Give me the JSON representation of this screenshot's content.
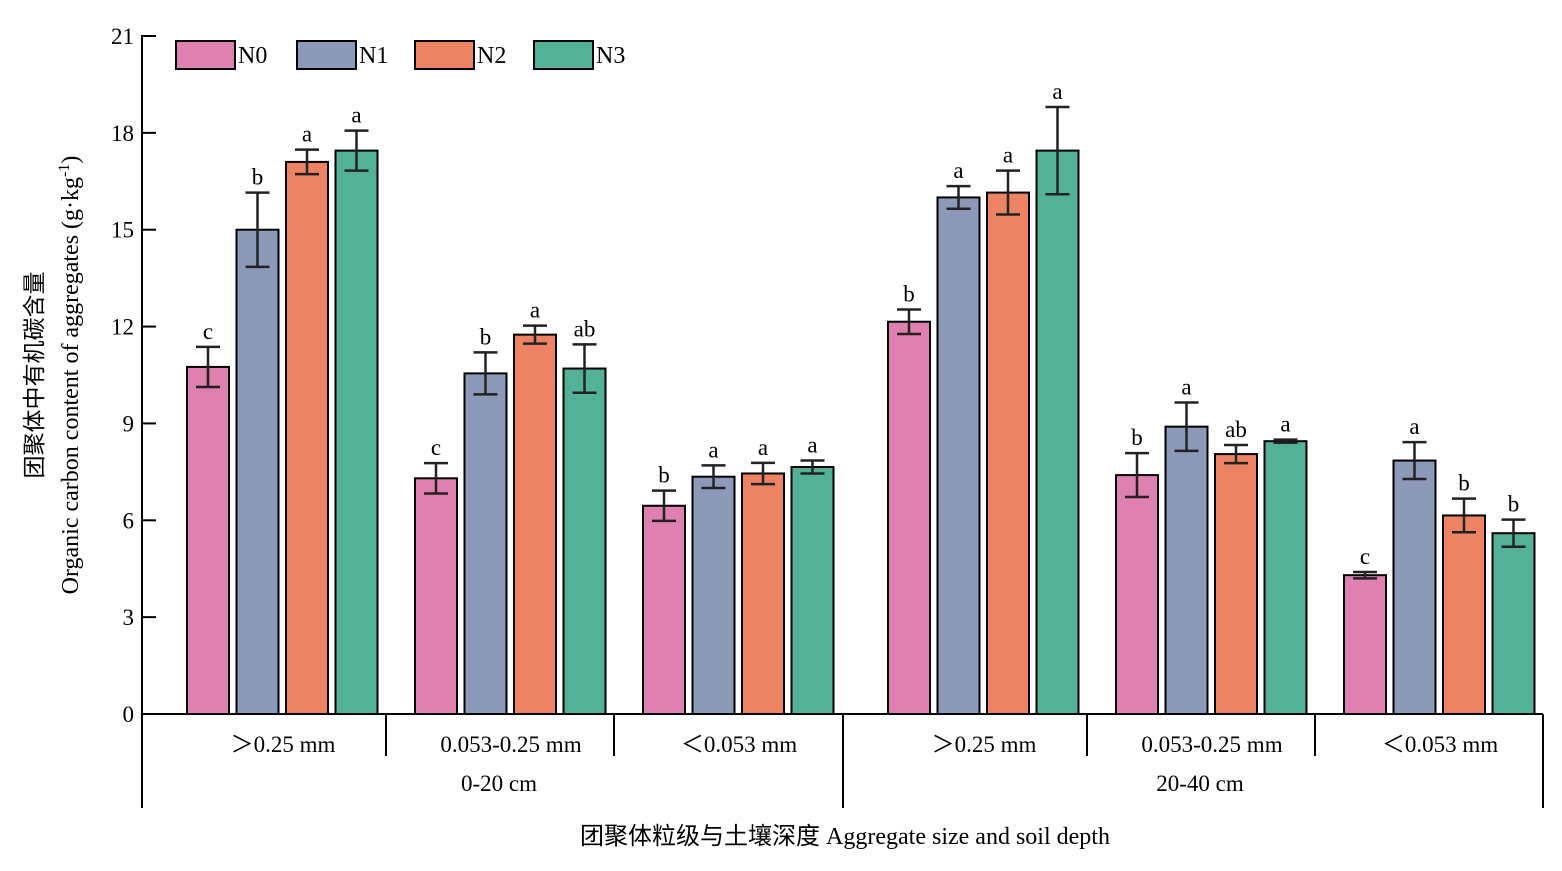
{
  "chart_data": {
    "type": "bar",
    "ylabel_cn": "团聚体中有机碳含量",
    "ylabel_en": "Organic carbon content of aggregates (g·kg",
    "ylabel_sup": "-1",
    "ylabel_close": ")",
    "xlabel": "团聚体粒级与土壤深度 Aggregate size and soil depth",
    "ylim": [
      0,
      21
    ],
    "yticks": [
      "0",
      "3",
      "6",
      "9",
      "12",
      "15",
      "18",
      "21"
    ],
    "legend_position": "top-left",
    "series_names": [
      "N0",
      "N1",
      "N2",
      "N3"
    ],
    "colors": [
      "#de80b0",
      "#8d99b9",
      "#ec8463",
      "#53b295"
    ],
    "depths": [
      {
        "label": "0-20 cm",
        "groups": [
          {
            "label": "＞0.25 mm",
            "values": [
              10.75,
              15.0,
              17.1,
              17.45
            ],
            "errors": [
              0.62,
              1.15,
              0.38,
              0.62
            ],
            "letters": [
              "c",
              "b",
              "a",
              "a"
            ]
          },
          {
            "label": "0.053-0.25 mm",
            "values": [
              7.3,
              10.55,
              11.75,
              10.7
            ],
            "errors": [
              0.47,
              0.65,
              0.28,
              0.75
            ],
            "letters": [
              "c",
              "b",
              "a",
              "ab"
            ]
          },
          {
            "label": "＜0.053 mm",
            "values": [
              6.45,
              7.35,
              7.45,
              7.65
            ],
            "errors": [
              0.47,
              0.35,
              0.33,
              0.2
            ],
            "letters": [
              "b",
              "a",
              "a",
              "a"
            ]
          }
        ]
      },
      {
        "label": "20-40 cm",
        "groups": [
          {
            "label": "＞0.25 mm",
            "values": [
              12.15,
              16.0,
              16.15,
              17.45
            ],
            "errors": [
              0.38,
              0.35,
              0.68,
              1.35
            ],
            "letters": [
              "b",
              "a",
              "a",
              "a"
            ]
          },
          {
            "label": "0.053-0.25 mm",
            "values": [
              7.4,
              8.9,
              8.05,
              8.45
            ],
            "errors": [
              0.68,
              0.75,
              0.28,
              0.05
            ],
            "letters": [
              "b",
              "a",
              "ab",
              "a"
            ]
          },
          {
            "label": "＜0.053 mm",
            "values": [
              4.3,
              7.85,
              6.15,
              5.6
            ],
            "errors": [
              0.1,
              0.57,
              0.52,
              0.42
            ],
            "letters": [
              "c",
              "a",
              "b",
              "b"
            ]
          }
        ]
      }
    ]
  }
}
